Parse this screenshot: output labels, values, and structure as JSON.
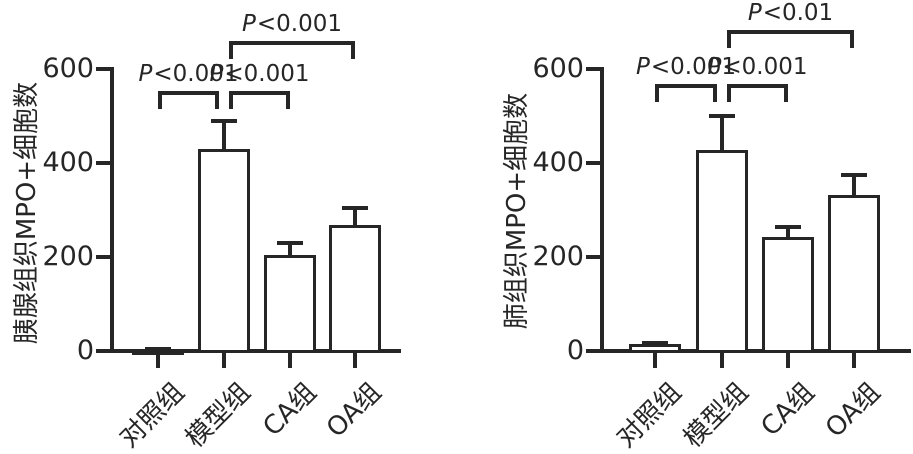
{
  "figure": {
    "background": "#ffffff",
    "stroke_color": "#262626",
    "bar_fill": "#ffffff"
  },
  "chart_data": [
    {
      "type": "bar",
      "title": "",
      "ylabel": "胰腺组织MPO+细胞数",
      "xlabel": "",
      "ylim": [
        0,
        600
      ],
      "yticks": [
        0,
        200,
        400,
        600
      ],
      "grid": "off",
      "legend": "none",
      "error_bars": "upper-only-sd",
      "categories": [
        "对照组",
        "模型组",
        "CA组",
        "OA组"
      ],
      "values": [
        3,
        428,
        202,
        265
      ],
      "errors_plus": [
        5,
        65,
        33,
        43
      ],
      "significance": [
        {
          "from": "对照组",
          "to": "模型组",
          "label": "P<0.001",
          "row": 0
        },
        {
          "from": "模型组",
          "to": "CA组",
          "label": "P<0.001",
          "row": 0
        },
        {
          "from": "模型组",
          "to": "OA组",
          "label": "P<0.001",
          "row": 1
        }
      ]
    },
    {
      "type": "bar",
      "title": "",
      "ylabel": "肺组织MPO+细胞数",
      "xlabel": "",
      "ylim": [
        0,
        600
      ],
      "yticks": [
        0,
        200,
        400,
        600
      ],
      "grid": "off",
      "legend": "none",
      "error_bars": "upper-only-sd",
      "categories": [
        "对照组",
        "模型组",
        "CA组",
        "OA组"
      ],
      "values": [
        13,
        425,
        240,
        330
      ],
      "errors_plus": [
        9,
        80,
        28,
        48
      ],
      "significance": [
        {
          "from": "对照组",
          "to": "模型组",
          "label": "P<0.001",
          "row": 0
        },
        {
          "from": "模型组",
          "to": "CA组",
          "label": "P<0.001",
          "row": 0
        },
        {
          "from": "模型组",
          "to": "OA组",
          "label": "P<0.01",
          "row": 1
        }
      ]
    }
  ]
}
